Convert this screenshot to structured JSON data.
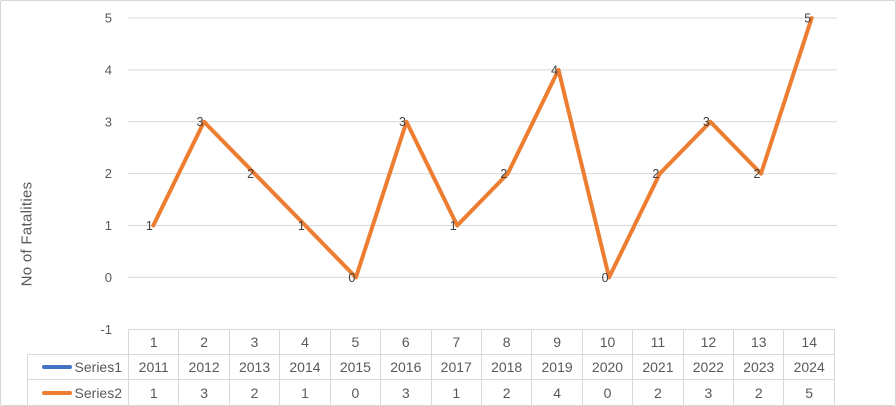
{
  "chart_data": {
    "type": "line",
    "title": "",
    "xlabel": "",
    "ylabel": "No of Fatalities",
    "ylim": [
      -1,
      5
    ],
    "yticks": [
      5,
      4,
      3,
      2,
      1,
      0,
      -1
    ],
    "grid": true,
    "data_labels": true,
    "legend_position": "data-table-left",
    "categories": [
      "1",
      "2",
      "3",
      "4",
      "5",
      "6",
      "7",
      "8",
      "9",
      "10",
      "11",
      "12",
      "13",
      "14"
    ],
    "series": [
      {
        "name": "Series1",
        "color": "#4472C4",
        "values": [
          2011,
          2012,
          2013,
          2014,
          2015,
          2016,
          2017,
          2018,
          2019,
          2020,
          2021,
          2022,
          2023,
          2024
        ],
        "visible_in_plot": false
      },
      {
        "name": "Series2",
        "color": "#ED7D31",
        "values": [
          1,
          3,
          2,
          1,
          0,
          3,
          1,
          2,
          4,
          0,
          2,
          3,
          2,
          5
        ],
        "visible_in_plot": true
      }
    ]
  },
  "colors": {
    "series1": "#4472C4",
    "series2": "#ED7D31",
    "gridline": "#D9D9D9",
    "axis_text": "#595959",
    "data_label": "#404040",
    "table_border": "#D9D9D9",
    "table_text": "#595959",
    "frame_border": "#D5D5D5",
    "background": "#FFFFFF"
  }
}
